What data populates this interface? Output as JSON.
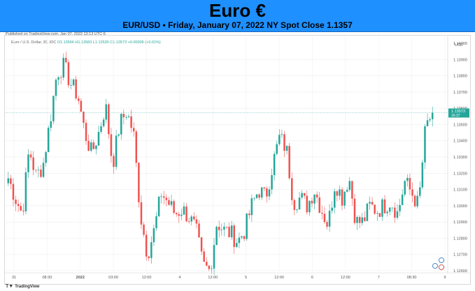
{
  "banner": {
    "title": "Euro €",
    "subtitle": "EUR/USD • Friday, January 07, 2022 NY Spot Close 1.1357"
  },
  "published": "Published on TradingView.com, Jan 07, 2022 13:13 UTC-5",
  "legend": {
    "symbol": "Euro / U.S. Dollar, 30, IDC",
    "ohlc": "O1.13566  H1.13583  L1.13530  C1.13573  +0.00006 (+0.01%)"
  },
  "footer": {
    "brand": "TradingView",
    "logo": "tradingview-logo"
  },
  "colors": {
    "up": "#26a69a",
    "down": "#ef5350",
    "price_tag": "#26a69a",
    "banner": "#1e90ff"
  },
  "chart_data": {
    "type": "candlestick",
    "title": "Euro / U.S. Dollar, 30, IDC",
    "ylabel": "USD",
    "ylim": [
      1.126,
      1.14
    ],
    "y_ticks": [
      "1.14000",
      "1.13900",
      "1.13800",
      "1.13700",
      "1.13600",
      "1.13500",
      "1.13400",
      "1.13300",
      "1.13200",
      "1.13100",
      "1.13000",
      "1.12900",
      "1.12800",
      "1.12700",
      "1.12600"
    ],
    "x_ticks": [
      "31",
      "08:30",
      "2022",
      "03:00",
      "12:00",
      "4",
      "12:00",
      "5",
      "12:00",
      "6",
      "12:00",
      "7",
      "08:30",
      "9"
    ],
    "last_price": {
      "value": 1.13573,
      "label": "1.13573",
      "countdown": "16:37"
    },
    "grid": true,
    "close_path": [
      1.1317,
      1.1305,
      1.1295,
      1.1335,
      1.1318,
      1.1325,
      1.1352,
      1.1382,
      1.1386,
      1.1375,
      1.1368,
      1.1345,
      1.1332,
      1.1345,
      1.1362,
      1.1325,
      1.135,
      1.1358,
      1.1345,
      1.1295,
      1.127,
      1.1285,
      1.1308,
      1.1302,
      1.1295,
      1.1298,
      1.1293,
      1.1285,
      1.1263,
      1.126,
      1.129,
      1.1285,
      1.1283,
      1.1278,
      1.1285,
      1.13,
      1.131,
      1.1305,
      1.1325,
      1.1342,
      1.1335,
      1.1302,
      1.1305,
      1.13,
      1.131,
      1.1298,
      1.1288,
      1.1315,
      1.1305,
      1.1318,
      1.129,
      1.129,
      1.13,
      1.1297,
      1.13,
      1.1303,
      1.1295,
      1.1315,
      1.1308,
      1.13,
      1.1348,
      1.1357
    ]
  }
}
